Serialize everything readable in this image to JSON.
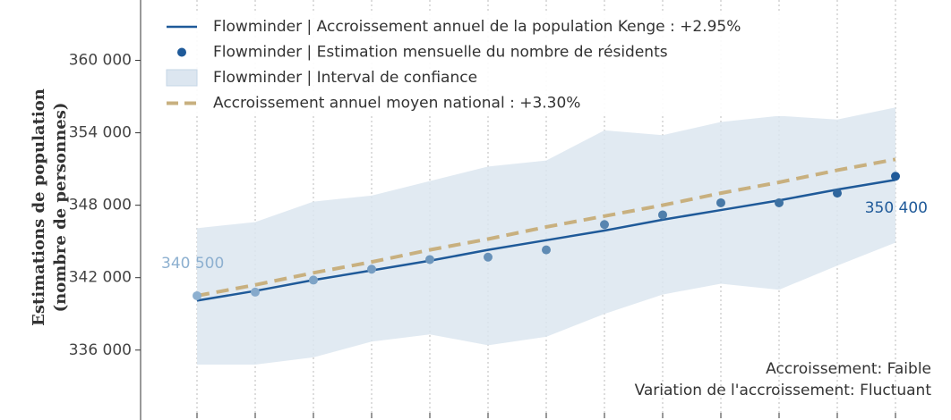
{
  "chart_data": {
    "type": "line",
    "ylabel": [
      "Estimations de population",
      "(nombre de personnes)"
    ],
    "categories": [
      null,
      null,
      null,
      null,
      null,
      null,
      null,
      null,
      null,
      null,
      null,
      null,
      null
    ],
    "ylim": [
      330800,
      365000
    ],
    "yticks": [
      {
        "value": 336000,
        "label": "336 000"
      },
      {
        "value": 342000,
        "label": "342 000"
      },
      {
        "value": 348000,
        "label": "348 000"
      },
      {
        "value": 354000,
        "label": "354 000"
      },
      {
        "value": 360000,
        "label": "360 000"
      }
    ],
    "grid": true,
    "legend": "upper left",
    "series": [
      {
        "name": "Flowminder | Accroissement annuel de la population Kenge : +2.95%",
        "style": "line",
        "color": "#1f5a99",
        "values": [
          340100,
          340900,
          341800,
          342600,
          343400,
          344300,
          345100,
          345900,
          346800,
          347600,
          348400,
          349300,
          350100
        ]
      },
      {
        "name": "Flowminder | Estimation mensuelle du nombre de résidents",
        "style": "scatter",
        "color": "#1f5a99",
        "colors": [
          "#8db0d0",
          "#85a9cb",
          "#7da3c6",
          "#769dc2",
          "#6e97bd",
          "#6791b9",
          "#5f8bb4",
          "#5885b0",
          "#507fab",
          "#4879a7",
          "#3d71a2",
          "#2f669d",
          "#1f5a99"
        ],
        "values": [
          340500,
          340800,
          341800,
          342700,
          343500,
          343700,
          344300,
          346400,
          347200,
          348200,
          348200,
          349000,
          350400
        ],
        "value_labels": [
          "340 500",
          null,
          null,
          null,
          null,
          null,
          null,
          null,
          null,
          null,
          null,
          null,
          "350 400"
        ]
      },
      {
        "name": "Flowminder | Interval de confiance",
        "style": "band",
        "color": "#dce6f0",
        "upper": [
          346100,
          346600,
          348300,
          348800,
          350000,
          351200,
          351700,
          354200,
          353800,
          354900,
          355400,
          355100,
          356100
        ],
        "lower": [
          334800,
          334800,
          335400,
          336700,
          337300,
          336400,
          337100,
          339000,
          340600,
          341500,
          341000,
          343000,
          344900
        ]
      },
      {
        "name": "Accroissement annuel moyen national : +3.30%",
        "style": "dashed",
        "color": "#c8b07f",
        "values": [
          340500,
          341400,
          342400,
          343300,
          344300,
          345200,
          346200,
          347100,
          348000,
          349000,
          349900,
          350900,
          351800
        ]
      }
    ],
    "annotations": [
      "Accroissement: Faible",
      "Variation de l'accroissement: Fluctuant"
    ]
  }
}
